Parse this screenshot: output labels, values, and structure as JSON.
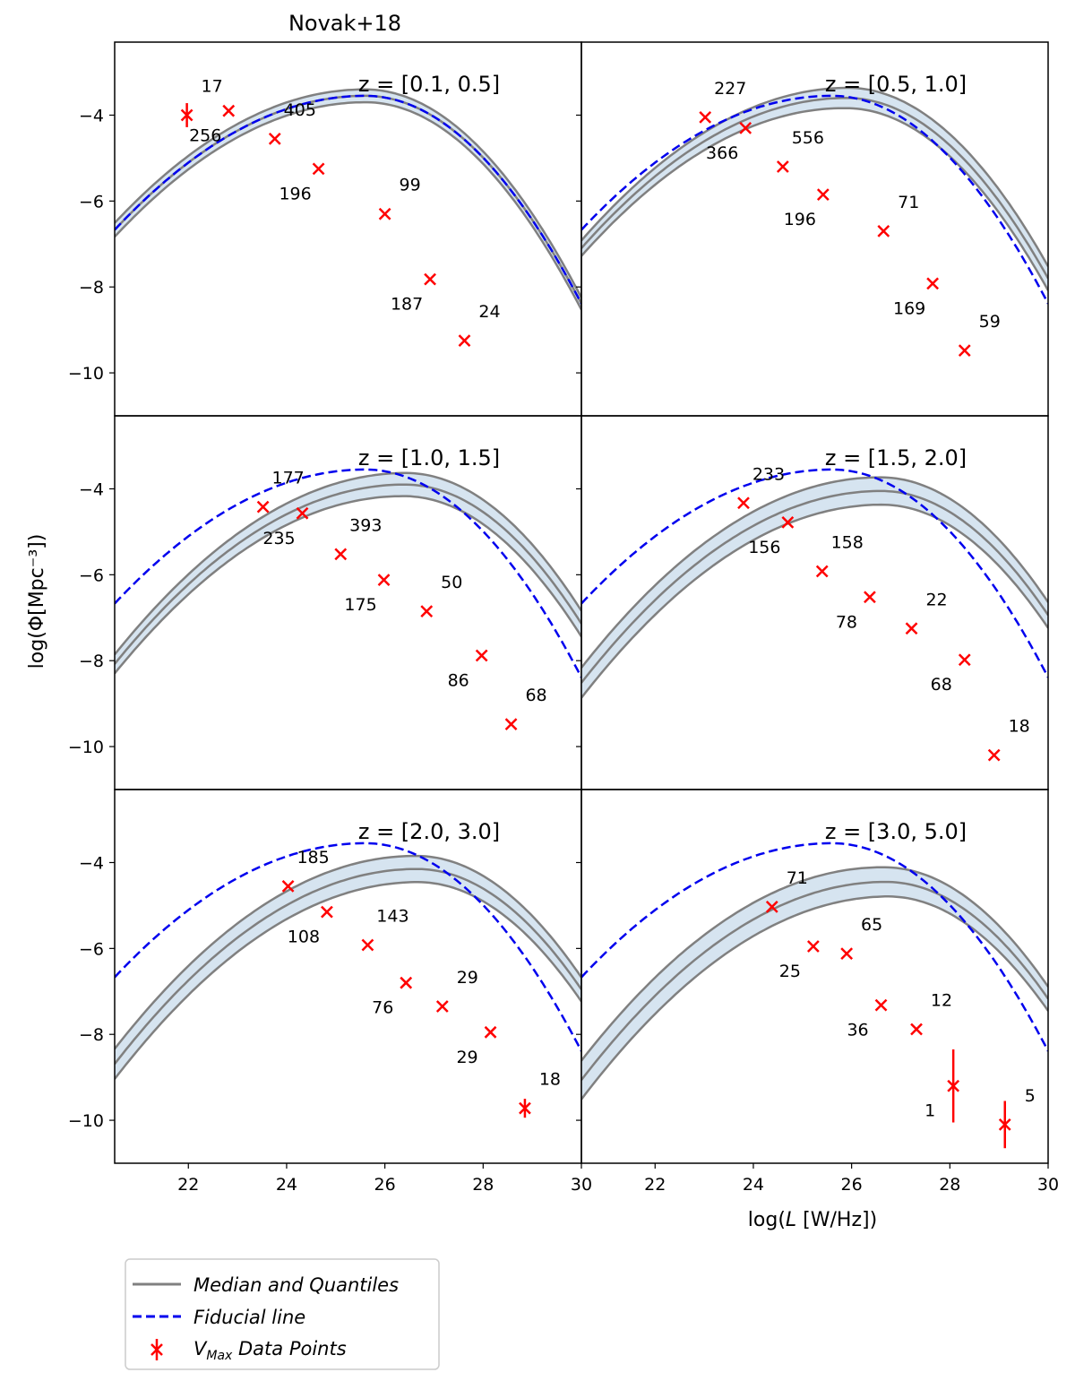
{
  "figure": {
    "title": "Novak+18",
    "xlabel_prefix": "log(",
    "xlabel_var": "L",
    "xlabel_suffix": " [W/Hz])",
    "ylabel": "log(Φ[Mpc⁻³])"
  },
  "colors": {
    "median": "#808080",
    "band": "#d6e4f0",
    "fiducial": "#0000ee",
    "data": "#ff0000"
  },
  "legend": {
    "items": [
      {
        "label": "Median and Quantiles",
        "kind": "median"
      },
      {
        "label": "Fiducial line",
        "kind": "fiducial"
      },
      {
        "label": "V",
        "sub": "Max",
        "suffix": " Data Points",
        "kind": "data"
      }
    ],
    "placement": "below figure, left"
  },
  "chart_data": [
    {
      "type": "line",
      "title": "z = [0.1, 0.5]",
      "xlim": [
        20.5,
        30
      ],
      "ylim": [
        -11,
        -2.3
      ],
      "xticks": [
        22,
        24,
        26,
        28,
        30
      ],
      "yticks": [
        -4,
        -6,
        -8,
        -10
      ],
      "fiducial": {
        "logphi_star": -3.4,
        "L_break": 25.6,
        "curv": 0.25
      },
      "median": {
        "logphi_star": -3.4,
        "L_break": 25.6,
        "curv": 0.25
      },
      "quantile_width": [
        0.16,
        0.14
      ],
      "points": [
        {
          "x": 21.97,
          "y": -4.0,
          "err": 0.28,
          "label": "17"
        },
        {
          "x": 22.82,
          "y": -3.9,
          "err": 0.0,
          "label": "256"
        },
        {
          "x": 23.76,
          "y": -4.55,
          "err": 0.0,
          "label": "405"
        },
        {
          "x": 24.65,
          "y": -5.25,
          "err": 0.0,
          "label": "196"
        },
        {
          "x": 26.0,
          "y": -6.3,
          "err": 0.0,
          "label": "99"
        },
        {
          "x": 26.92,
          "y": -7.82,
          "err": 0.0,
          "label": "187"
        },
        {
          "x": 27.62,
          "y": -9.25,
          "err": 0.0,
          "label": "24"
        }
      ]
    },
    {
      "type": "line",
      "title": "z = [0.5, 1.0]",
      "xlim": [
        20.5,
        30
      ],
      "ylim": [
        -11,
        -2.3
      ],
      "xticks": [
        22,
        24,
        26,
        28,
        30
      ],
      "yticks": [
        -4,
        -6,
        -8,
        -10
      ],
      "fiducial": {
        "logphi_star": -3.4,
        "L_break": 25.6,
        "curv": 0.25
      },
      "median": {
        "logphi_star": -3.45,
        "L_break": 25.9,
        "curv": 0.25
      },
      "quantile_width": [
        0.18,
        0.28
      ],
      "points": [
        {
          "x": 23.02,
          "y": -4.05,
          "err": 0.0,
          "label": "227"
        },
        {
          "x": 23.84,
          "y": -4.3,
          "err": 0.0,
          "label": "366"
        },
        {
          "x": 24.6,
          "y": -5.2,
          "err": 0.0,
          "label": "556"
        },
        {
          "x": 25.42,
          "y": -5.85,
          "err": 0.0,
          "label": "196"
        },
        {
          "x": 26.65,
          "y": -6.7,
          "err": 0.0,
          "label": "71"
        },
        {
          "x": 27.65,
          "y": -7.92,
          "err": 0.0,
          "label": "169"
        },
        {
          "x": 28.3,
          "y": -9.48,
          "err": 0.0,
          "label": "59"
        }
      ]
    },
    {
      "type": "line",
      "title": "z = [1.0, 1.5]",
      "xlim": [
        20.5,
        30
      ],
      "ylim": [
        -11,
        -2.3
      ],
      "xticks": [
        22,
        24,
        26,
        28,
        30
      ],
      "yticks": [
        -4,
        -6,
        -8,
        -10
      ],
      "fiducial": {
        "logphi_star": -3.4,
        "L_break": 25.6,
        "curv": 0.25
      },
      "median": {
        "logphi_star": -3.75,
        "L_break": 26.4,
        "curv": 0.25
      },
      "quantile_width": [
        0.22,
        0.3
      ],
      "points": [
        {
          "x": 23.52,
          "y": -4.42,
          "err": 0.0,
          "label": "177"
        },
        {
          "x": 24.32,
          "y": -4.57,
          "err": 0.0,
          "label": "235"
        },
        {
          "x": 25.1,
          "y": -5.52,
          "err": 0.0,
          "label": "393"
        },
        {
          "x": 25.98,
          "y": -6.12,
          "err": 0.0,
          "label": "175"
        },
        {
          "x": 26.85,
          "y": -6.85,
          "err": 0.0,
          "label": "50"
        },
        {
          "x": 27.97,
          "y": -7.88,
          "err": 0.0,
          "label": "86"
        },
        {
          "x": 28.57,
          "y": -9.48,
          "err": 0.0,
          "label": "68"
        }
      ]
    },
    {
      "type": "line",
      "title": "z = [1.5, 2.0]",
      "xlim": [
        20.5,
        30
      ],
      "ylim": [
        -11,
        -2.3
      ],
      "xticks": [
        22,
        24,
        26,
        28,
        30
      ],
      "yticks": [
        -4,
        -6,
        -8,
        -10
      ],
      "fiducial": {
        "logphi_star": -3.4,
        "L_break": 25.6,
        "curv": 0.25
      },
      "median": {
        "logphi_star": -3.9,
        "L_break": 26.6,
        "curv": 0.25
      },
      "quantile_width": [
        0.35,
        0.3
      ],
      "points": [
        {
          "x": 23.8,
          "y": -4.33,
          "err": 0.0,
          "label": "233"
        },
        {
          "x": 24.7,
          "y": -4.78,
          "err": 0.0,
          "label": "156"
        },
        {
          "x": 25.4,
          "y": -5.92,
          "err": 0.0,
          "label": "158"
        },
        {
          "x": 26.37,
          "y": -6.52,
          "err": 0.0,
          "label": "78"
        },
        {
          "x": 27.22,
          "y": -7.25,
          "err": 0.0,
          "label": "22"
        },
        {
          "x": 28.3,
          "y": -7.98,
          "err": 0.0,
          "label": "68"
        },
        {
          "x": 28.9,
          "y": -10.2,
          "err": 0.0,
          "label": "18"
        }
      ]
    },
    {
      "type": "line",
      "title": "z = [2.0, 3.0]",
      "xlim": [
        20.5,
        30
      ],
      "ylim": [
        -11,
        -2.3
      ],
      "xticks": [
        22,
        24,
        26,
        28,
        30
      ],
      "yticks": [
        -4,
        -6,
        -8,
        -10
      ],
      "fiducial": {
        "logphi_star": -3.4,
        "L_break": 25.6,
        "curv": 0.25
      },
      "median": {
        "logphi_star": -4.0,
        "L_break": 26.65,
        "curv": 0.25
      },
      "quantile_width": [
        0.35,
        0.28
      ],
      "points": [
        {
          "x": 24.03,
          "y": -4.55,
          "err": 0.0,
          "label": "185"
        },
        {
          "x": 24.82,
          "y": -5.15,
          "err": 0.0,
          "label": "108"
        },
        {
          "x": 25.65,
          "y": -5.92,
          "err": 0.0,
          "label": "143"
        },
        {
          "x": 26.43,
          "y": -6.8,
          "err": 0.0,
          "label": "76"
        },
        {
          "x": 27.17,
          "y": -7.35,
          "err": 0.0,
          "label": "29"
        },
        {
          "x": 28.15,
          "y": -7.95,
          "err": 0.0,
          "label": "29"
        },
        {
          "x": 28.85,
          "y": -9.72,
          "err": 0.22,
          "label": "18"
        }
      ]
    },
    {
      "type": "line",
      "title": "z = [3.0, 5.0]",
      "xlim": [
        20.5,
        30
      ],
      "ylim": [
        -11,
        -2.3
      ],
      "xticks": [
        22,
        24,
        26,
        28,
        30
      ],
      "yticks": [
        -4,
        -6,
        -8,
        -10
      ],
      "fiducial": {
        "logphi_star": -3.4,
        "L_break": 25.6,
        "curv": 0.25
      },
      "median": {
        "logphi_star": -4.3,
        "L_break": 26.7,
        "curv": 0.25
      },
      "quantile_width": [
        0.45,
        0.28
      ],
      "points": [
        {
          "x": 24.38,
          "y": -5.03,
          "err": 0.0,
          "label": "71"
        },
        {
          "x": 25.22,
          "y": -5.95,
          "err": 0.0,
          "label": "25"
        },
        {
          "x": 25.9,
          "y": -6.12,
          "err": 0.0,
          "label": "65"
        },
        {
          "x": 26.6,
          "y": -7.32,
          "err": 0.0,
          "label": "36"
        },
        {
          "x": 27.32,
          "y": -7.88,
          "err": 0.0,
          "label": "12"
        },
        {
          "x": 28.07,
          "y": -9.2,
          "err": 0.85,
          "label": "1"
        },
        {
          "x": 29.12,
          "y": -10.1,
          "err": 0.55,
          "label": "5"
        }
      ]
    }
  ]
}
